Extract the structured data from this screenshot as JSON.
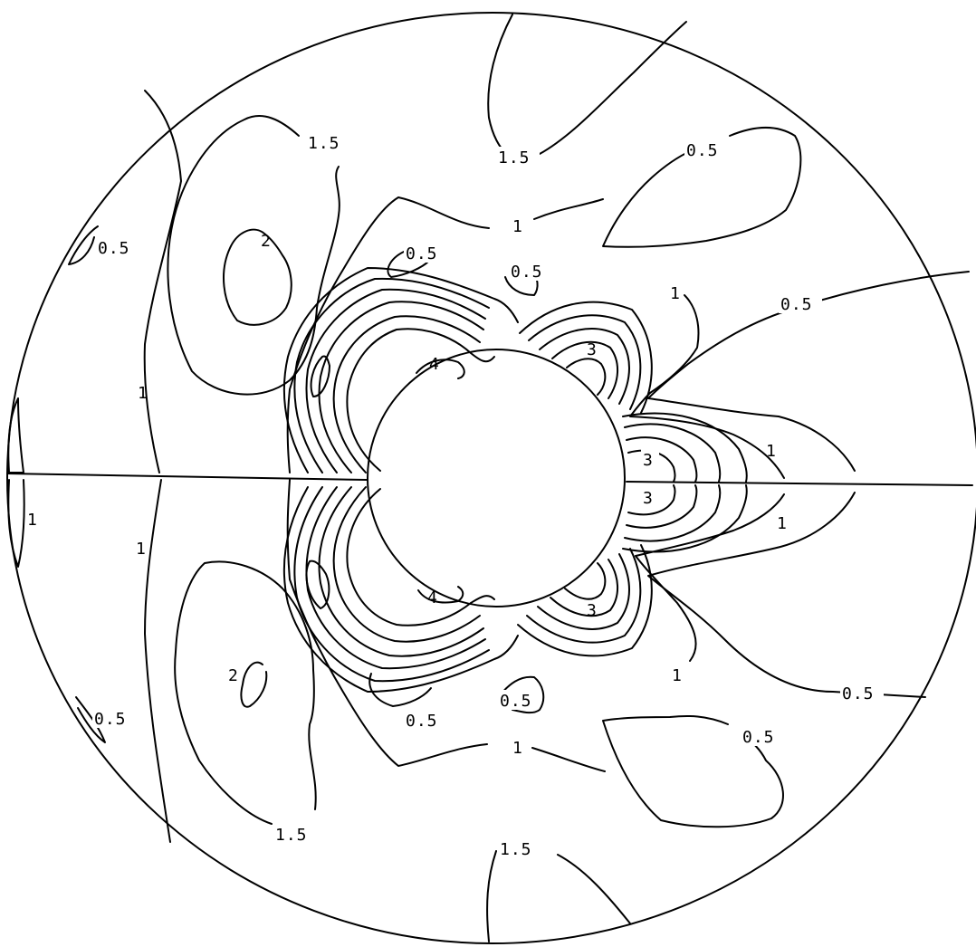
{
  "figure": {
    "stroke_color": "#000000",
    "background": "#ffffff",
    "symmetry": "mirror about horizontal centerline"
  },
  "contour_labels": {
    "upper": [
      "1.5",
      "1.5",
      "0.5",
      "0.5",
      "2",
      "0.5",
      "0.5",
      "1",
      "1",
      "0.5",
      "4",
      "3",
      "1",
      "3",
      "1"
    ],
    "lower": [
      "1",
      "1",
      "2",
      "0.5",
      "1.5",
      "1.5",
      "0.5",
      "0.5",
      "4",
      "3",
      "1",
      "0.5",
      "0.5",
      "3",
      "1"
    ]
  }
}
